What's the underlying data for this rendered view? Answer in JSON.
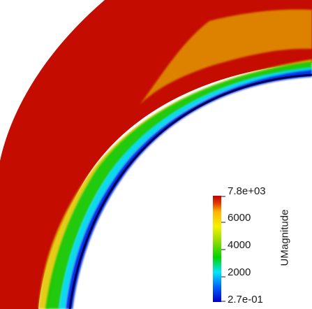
{
  "figure": {
    "legend_title": "UMagnitude",
    "labels": [
      "7.8e+03",
      "6000",
      "4000",
      "2000",
      "2.7e-01"
    ],
    "colormap": [
      "#0000c8",
      "#0060ff",
      "#00e5ff",
      "#00d400",
      "#8fdc00",
      "#f5f100",
      "#ffb400",
      "#e03a00",
      "#c40000"
    ]
  }
}
